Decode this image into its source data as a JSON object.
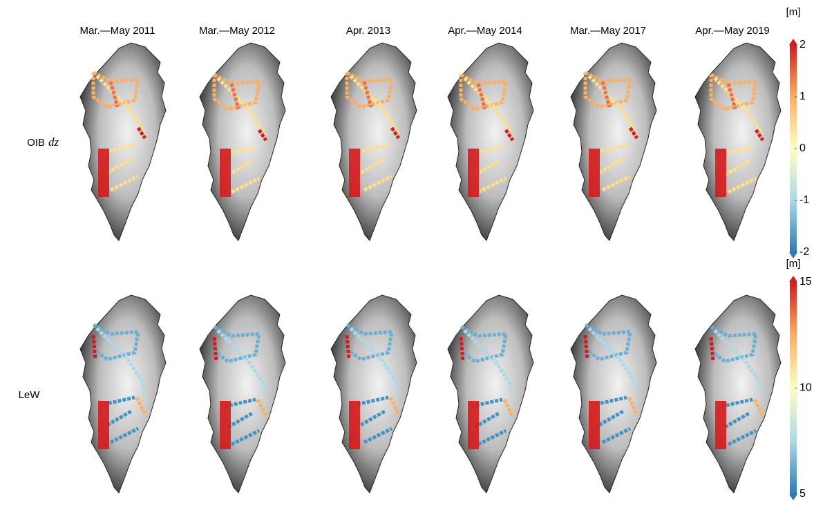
{
  "columns": [
    "Mar.—May 2011",
    "Mar.—May 2012",
    "Apr. 2013",
    "Apr.—May 2014",
    "Mar.—May 2017",
    "Apr.—May 2019"
  ],
  "rows": [
    {
      "label": "OIB",
      "label_math": "dz",
      "colorbar": {
        "unit": "[m]",
        "ticks": [
          2,
          1,
          0,
          -1,
          -2
        ]
      }
    },
    {
      "label": "LeW",
      "colorbar": {
        "unit": "[m]",
        "ticks": [
          15,
          10,
          5
        ]
      }
    }
  ]
}
